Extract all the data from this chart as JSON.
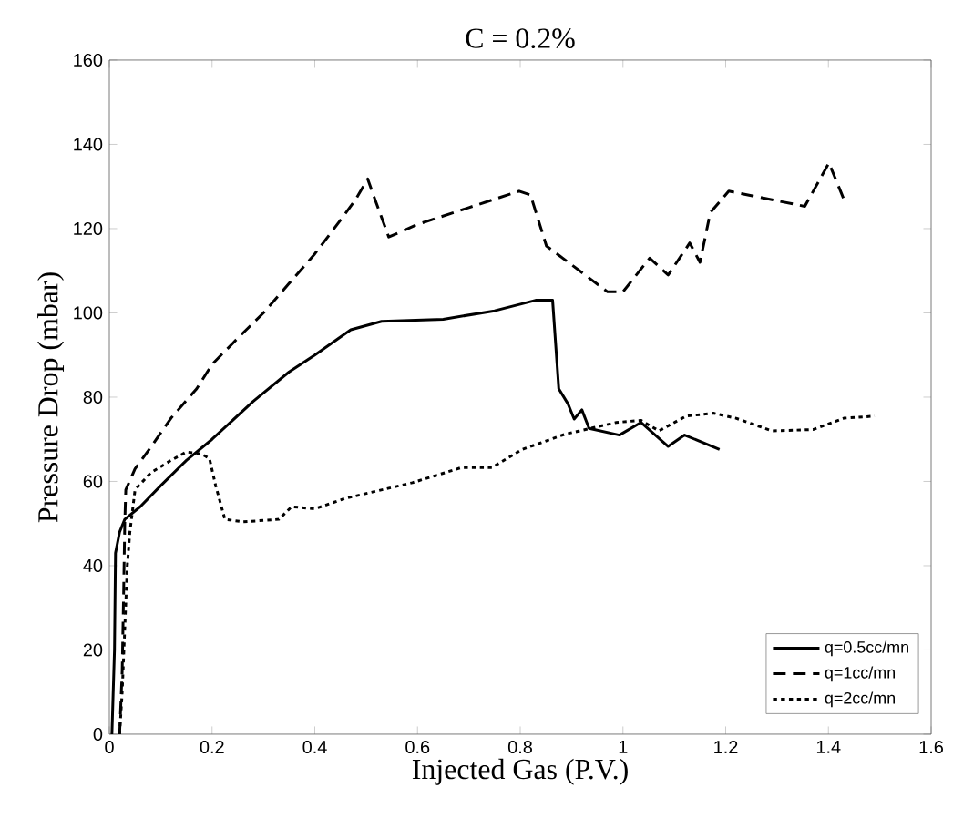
{
  "chart_data": {
    "type": "line",
    "title": "C = 0.2%",
    "xlabel": "Injected Gas (P.V.)",
    "ylabel": "Pressure Drop (mbar)",
    "xlim": [
      0,
      1.6
    ],
    "ylim": [
      0,
      160
    ],
    "xticks": [
      0,
      0.2,
      0.4,
      0.6,
      0.8,
      1,
      1.2,
      1.4,
      1.6
    ],
    "yticks": [
      0,
      20,
      40,
      60,
      80,
      100,
      120,
      140,
      160
    ],
    "grid": false,
    "legend": "bottom right",
    "marker": "none",
    "series": [
      {
        "name": "q=0.5cc/mn",
        "color": "#000000",
        "line_style": "solid",
        "x": [
          0.005,
          0.01,
          0.012,
          0.02,
          0.03,
          0.06,
          0.1,
          0.15,
          0.2,
          0.28,
          0.35,
          0.4,
          0.47,
          0.53,
          0.65,
          0.75,
          0.83,
          0.863,
          0.875,
          0.893,
          0.905,
          0.92,
          0.934,
          0.993,
          1.035,
          1.088,
          1.12,
          1.188
        ],
        "values": [
          0,
          20,
          43,
          48,
          51,
          54,
          59,
          65,
          70,
          79,
          86,
          90,
          96,
          98,
          98.5,
          100.5,
          103,
          103,
          82,
          78.4,
          74.8,
          77,
          72.6,
          71,
          74,
          68.3,
          71,
          67.6
        ]
      },
      {
        "name": "q=1cc/mn",
        "color": "#000000",
        "line_style": "dashed",
        "x": [
          0.02,
          0.025,
          0.028,
          0.03,
          0.032,
          0.05,
          0.08,
          0.12,
          0.17,
          0.2,
          0.25,
          0.3,
          0.35,
          0.4,
          0.45,
          0.48,
          0.503,
          0.52,
          0.544,
          0.6,
          0.7,
          0.798,
          0.82,
          0.851,
          0.97,
          1.0,
          1.052,
          1.088,
          1.13,
          1.15,
          1.17,
          1.206,
          1.354,
          1.401,
          1.431
        ],
        "values": [
          0,
          15,
          35,
          50,
          58,
          63,
          68,
          75,
          82,
          87.8,
          94,
          100,
          107,
          114,
          122,
          127,
          131.8,
          126,
          118,
          121,
          125,
          128.9,
          128,
          115.9,
          105,
          105,
          113,
          109,
          116.6,
          112,
          123.8,
          128.9,
          125.3,
          135.6,
          126.7
        ]
      },
      {
        "name": "q=2cc/mn",
        "color": "#000000",
        "line_style": "dotted",
        "x": [
          0.02,
          0.025,
          0.03,
          0.035,
          0.04,
          0.05,
          0.08,
          0.12,
          0.15,
          0.18,
          0.195,
          0.207,
          0.225,
          0.26,
          0.33,
          0.355,
          0.4,
          0.46,
          0.59,
          0.686,
          0.745,
          0.804,
          0.887,
          0.987,
          1.035,
          1.07,
          1.123,
          1.176,
          1.22,
          1.29,
          1.37,
          1.43,
          1.49
        ],
        "values": [
          0,
          10,
          25,
          40,
          48,
          58,
          62,
          65,
          67,
          66.5,
          65.4,
          59,
          51,
          50.4,
          51,
          54,
          53.5,
          56,
          59.7,
          63.3,
          63.3,
          67.6,
          71.2,
          74,
          74.5,
          72,
          75.5,
          76.2,
          75,
          72,
          72.3,
          75,
          75.5
        ]
      }
    ]
  }
}
